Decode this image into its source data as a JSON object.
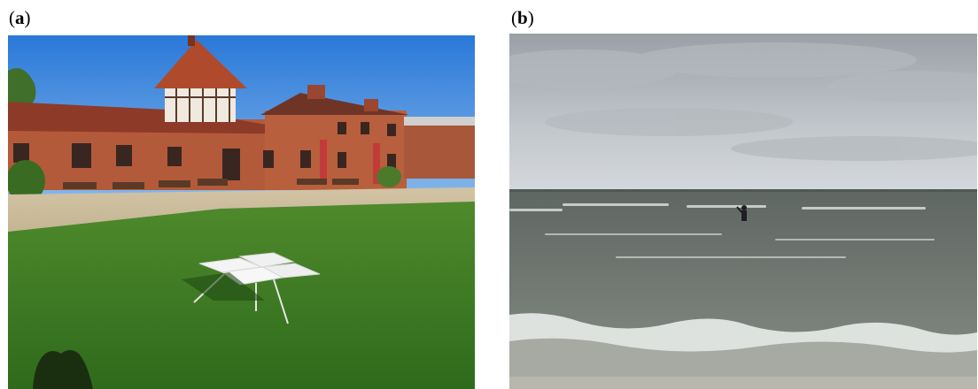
{
  "panels": [
    {
      "label_open": "(",
      "label_letter": "a",
      "label_close": ")"
    },
    {
      "label_open": "(",
      "label_letter": "b",
      "label_close": ")"
    }
  ]
}
